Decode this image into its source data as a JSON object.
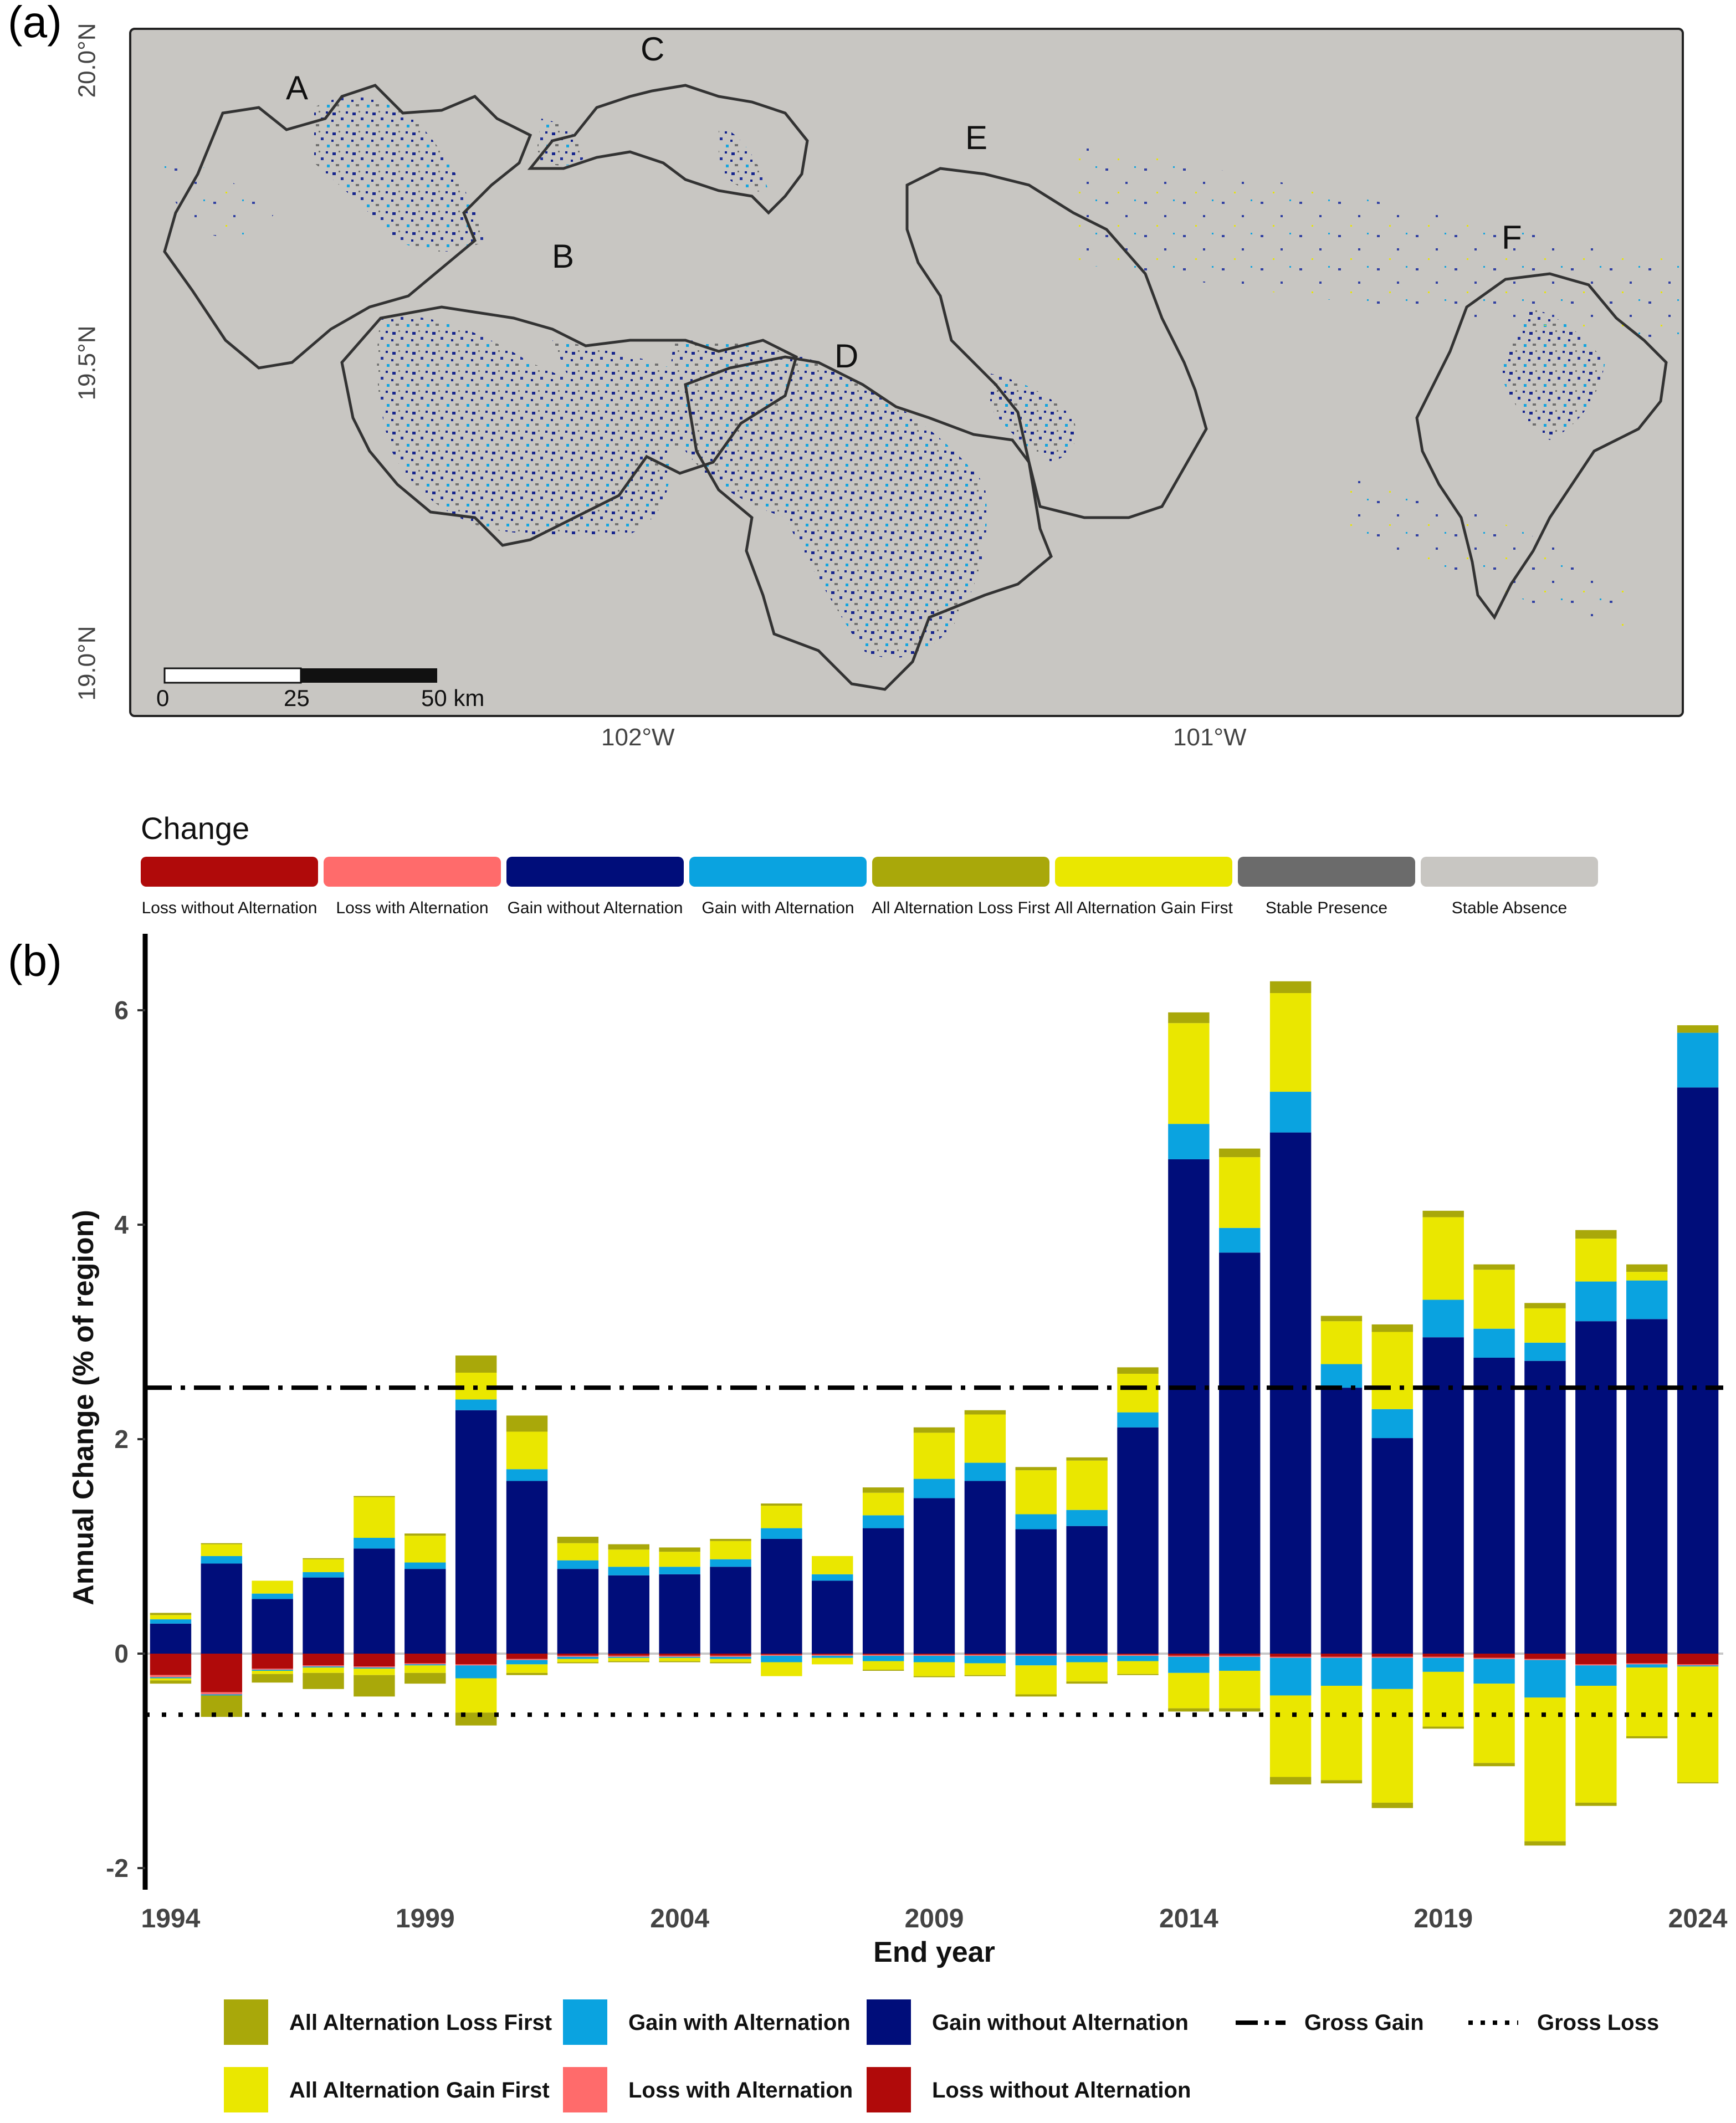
{
  "panel_a": {
    "label": "(a)",
    "lat_labels": [
      "20.0°N",
      "19.5°N",
      "19.0°N"
    ],
    "lon_labels": [
      "102°W",
      "101°W"
    ],
    "regions": [
      "A",
      "B",
      "C",
      "D",
      "E",
      "F"
    ],
    "scale_labels": [
      "0",
      "25",
      "50 km"
    ]
  },
  "change_legend": {
    "title": "Change",
    "items": [
      {
        "label": "Loss without Alternation",
        "color": "#b00a0a"
      },
      {
        "label": "Loss with Alternation",
        "color": "#ff6b6b"
      },
      {
        "label": "Gain without Alternation",
        "color": "#000d7a"
      },
      {
        "label": "Gain with Alternation",
        "color": "#0aa3e0"
      },
      {
        "label": "All Alternation Loss First",
        "color": "#a9a80a"
      },
      {
        "label": "All Alternation Gain First",
        "color": "#eae700"
      },
      {
        "label": "Stable Presence",
        "color": "#6b6b6b"
      },
      {
        "label": "Stable Absence",
        "color": "#c8c6c2"
      }
    ]
  },
  "panel_b": {
    "label": "(b)",
    "bottom_legend": [
      {
        "label": "All Alternation Loss First",
        "color": "#a9a80a"
      },
      {
        "label": "Gain with Alternation",
        "color": "#0aa3e0"
      },
      {
        "label": "Gain without Alternation",
        "color": "#000d7a"
      },
      {
        "label": "Gross Gain",
        "style": "dash-dot"
      },
      {
        "label": "Gross Loss",
        "style": "dotted"
      },
      {
        "label": "All Alternation Gain First",
        "color": "#eae700"
      },
      {
        "label": "Loss with Alternation",
        "color": "#ff6b6b"
      },
      {
        "label": "Loss without Alternation",
        "color": "#b00a0a"
      }
    ]
  },
  "chart_data": {
    "type": "bar",
    "stacked": true,
    "xlabel": "End year",
    "ylabel": "Annual Change (% of region)",
    "ylim": [
      -2.2,
      6.6
    ],
    "yticks": [
      -2,
      0,
      2,
      4,
      6
    ],
    "xtick_labels": [
      "1994",
      "1999",
      "2004",
      "2009",
      "2014",
      "2019",
      "2024"
    ],
    "categories": [
      "1994",
      "1995",
      "1996",
      "1997",
      "1998",
      "1999",
      "2000",
      "2001",
      "2002",
      "2003",
      "2004",
      "2005",
      "2006",
      "2007",
      "2008",
      "2009",
      "2010",
      "2011",
      "2012",
      "2013",
      "2014",
      "2015",
      "2016",
      "2017",
      "2018",
      "2019",
      "2020",
      "2021",
      "2022",
      "2023",
      "2024"
    ],
    "gross_gain": 2.48,
    "gross_loss": -0.57,
    "series": [
      {
        "name": "Gain without Alternation",
        "color": "#000d7a",
        "values": [
          0.28,
          0.84,
          0.51,
          0.71,
          0.98,
          0.79,
          2.27,
          1.61,
          0.79,
          0.73,
          0.74,
          0.81,
          1.07,
          0.68,
          1.17,
          1.45,
          1.61,
          1.16,
          1.19,
          2.11,
          4.61,
          3.74,
          4.86,
          2.48,
          2.01,
          2.95,
          2.76,
          2.73,
          3.1,
          3.12,
          5.28
        ]
      },
      {
        "name": "Gain with Alternation",
        "color": "#0aa3e0",
        "values": [
          0.04,
          0.07,
          0.05,
          0.05,
          0.1,
          0.06,
          0.1,
          0.11,
          0.08,
          0.08,
          0.07,
          0.07,
          0.1,
          0.06,
          0.12,
          0.18,
          0.17,
          0.14,
          0.15,
          0.14,
          0.33,
          0.23,
          0.38,
          0.22,
          0.27,
          0.35,
          0.27,
          0.17,
          0.37,
          0.36,
          0.51
        ]
      },
      {
        "name": "All Alternation Gain First",
        "color": "#eae700",
        "values": [
          0.04,
          0.11,
          0.12,
          0.12,
          0.38,
          0.25,
          0.25,
          0.35,
          0.16,
          0.16,
          0.14,
          0.17,
          0.21,
          0.17,
          0.21,
          0.43,
          0.45,
          0.41,
          0.46,
          0.36,
          0.94,
          0.66,
          0.92,
          0.4,
          0.72,
          0.77,
          0.55,
          0.32,
          0.4,
          0.08,
          0.0
        ]
      },
      {
        "name": "All Alternation Loss First",
        "color": "#a9a80a",
        "values": [
          0.02,
          0.01,
          0.0,
          0.01,
          0.01,
          0.02,
          0.16,
          0.15,
          0.06,
          0.05,
          0.04,
          0.02,
          0.02,
          0.0,
          0.05,
          0.05,
          0.04,
          0.03,
          0.03,
          0.06,
          0.1,
          0.08,
          0.11,
          0.05,
          0.07,
          0.06,
          0.05,
          0.05,
          0.08,
          0.07,
          0.07
        ]
      },
      {
        "name": "Loss without Alternation",
        "color": "#b00a0a",
        "values": [
          -0.2,
          -0.36,
          -0.14,
          -0.11,
          -0.12,
          -0.09,
          -0.1,
          -0.05,
          -0.02,
          -0.02,
          -0.02,
          -0.02,
          -0.01,
          -0.01,
          -0.01,
          -0.01,
          -0.01,
          -0.01,
          -0.01,
          -0.01,
          -0.02,
          -0.02,
          -0.03,
          -0.03,
          -0.03,
          -0.03,
          -0.04,
          -0.05,
          -0.1,
          -0.09,
          -0.1
        ]
      },
      {
        "name": "Loss with Alternation",
        "color": "#ff6b6b",
        "values": [
          -0.02,
          -0.02,
          -0.01,
          -0.01,
          -0.01,
          -0.01,
          -0.01,
          -0.01,
          -0.01,
          -0.01,
          -0.01,
          -0.01,
          -0.01,
          -0.01,
          -0.01,
          -0.01,
          -0.01,
          -0.01,
          -0.01,
          -0.01,
          -0.01,
          -0.01,
          -0.01,
          -0.01,
          -0.01,
          -0.01,
          -0.01,
          -0.01,
          -0.01,
          -0.01,
          -0.01
        ]
      },
      {
        "name": "Gain with Alternation (loss side)",
        "color": "#0aa3e0",
        "values": [
          -0.01,
          -0.01,
          -0.01,
          -0.01,
          -0.01,
          -0.01,
          -0.12,
          -0.04,
          -0.02,
          -0.01,
          -0.01,
          -0.02,
          -0.06,
          -0.02,
          -0.05,
          -0.06,
          -0.07,
          -0.09,
          -0.06,
          -0.05,
          -0.15,
          -0.13,
          -0.35,
          -0.26,
          -0.29,
          -0.13,
          -0.23,
          -0.35,
          -0.19,
          -0.03,
          -0.01
        ]
      },
      {
        "name": "All Alternation Gain First (loss side)",
        "color": "#eae700",
        "values": [
          -0.02,
          0.0,
          -0.03,
          -0.05,
          -0.06,
          -0.07,
          -0.32,
          -0.08,
          -0.03,
          -0.03,
          -0.03,
          -0.03,
          -0.13,
          -0.06,
          -0.08,
          -0.13,
          -0.11,
          -0.27,
          -0.18,
          -0.12,
          -0.33,
          -0.35,
          -0.76,
          -0.88,
          -1.06,
          -0.51,
          -0.74,
          -1.34,
          -1.09,
          -0.64,
          -1.08
        ]
      },
      {
        "name": "All Alternation Loss First (loss side)",
        "color": "#a9a80a",
        "values": [
          -0.03,
          -0.2,
          -0.08,
          -0.15,
          -0.2,
          -0.1,
          -0.12,
          -0.02,
          -0.01,
          -0.01,
          -0.01,
          -0.01,
          0.0,
          0.0,
          -0.01,
          -0.01,
          -0.01,
          -0.02,
          -0.02,
          -0.01,
          -0.03,
          -0.03,
          -0.07,
          -0.03,
          -0.05,
          -0.02,
          -0.03,
          -0.04,
          -0.03,
          -0.02,
          -0.01
        ]
      }
    ]
  }
}
